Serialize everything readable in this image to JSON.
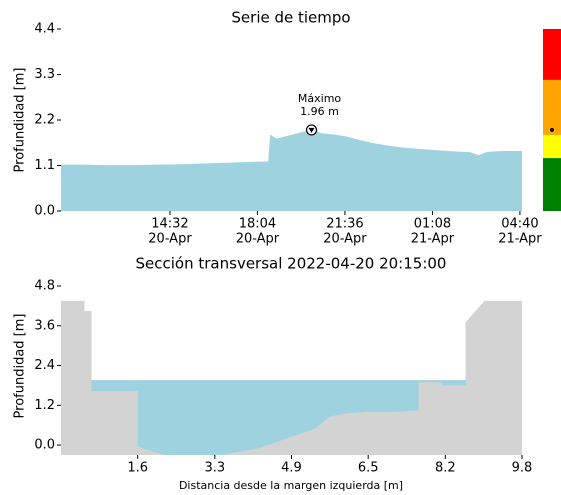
{
  "chart_data": [
    {
      "type": "area",
      "title": "Serie de tiempo",
      "ylabel": "Profundidad [m]",
      "color": "#9fd2df",
      "x": [
        "20-Apr 10:08",
        "20-Apr 11:00",
        "20-Apr 12:00",
        "20-Apr 13:00",
        "20-Apr 14:00",
        "20-Apr 15:00",
        "20-Apr 16:00",
        "20-Apr 17:00",
        "20-Apr 18:00",
        "20-Apr 18:30",
        "20-Apr 18:35",
        "20-Apr 18:50",
        "20-Apr 19:10",
        "20-Apr 19:30",
        "20-Apr 19:50",
        "20-Apr 20:15",
        "20-Apr 20:40",
        "20-Apr 21:10",
        "20-Apr 21:40",
        "20-Apr 22:10",
        "20-Apr 22:40",
        "20-Apr 23:20",
        "21-Apr 00:00",
        "21-Apr 00:40",
        "21-Apr 01:20",
        "21-Apr 02:00",
        "21-Apr 02:40",
        "21-Apr 03:00",
        "21-Apr 03:20",
        "21-Apr 04:00",
        "21-Apr 04:45"
      ],
      "values": [
        1.12,
        1.12,
        1.11,
        1.11,
        1.12,
        1.13,
        1.15,
        1.17,
        1.19,
        1.2,
        1.85,
        1.75,
        1.8,
        1.85,
        1.9,
        1.96,
        1.88,
        1.85,
        1.8,
        1.72,
        1.65,
        1.58,
        1.53,
        1.5,
        1.47,
        1.44,
        1.42,
        1.35,
        1.43,
        1.45,
        1.45
      ],
      "xlim": [
        "20-Apr 10:08",
        "21-Apr 04:45"
      ],
      "ylim": [
        0,
        4.4
      ],
      "xticks": [
        {
          "value": "20-Apr 14:32",
          "label": [
            "14:32",
            "20-Apr"
          ]
        },
        {
          "value": "20-Apr 18:04",
          "label": [
            "18:04",
            "20-Apr"
          ]
        },
        {
          "value": "20-Apr 21:36",
          "label": [
            "21:36",
            "20-Apr"
          ]
        },
        {
          "value": "21-Apr 01:08",
          "label": [
            "01:08",
            "21-Apr"
          ]
        },
        {
          "value": "21-Apr 04:40",
          "label": [
            "04:40",
            "21-Apr"
          ]
        }
      ],
      "yticks": [
        {
          "value": 0,
          "label": "0.0"
        },
        1.1,
        2.2,
        3.3,
        4.4
      ],
      "annotation": {
        "text": "Máximo",
        "x": "20-Apr 20:15",
        "value": 1.96,
        "value_label": "1.96 m"
      },
      "levels": [
        {
          "from": 0,
          "to": 1.28,
          "color": "#008000"
        },
        {
          "from": 1.28,
          "to": 1.84,
          "color": "#ffff00"
        },
        {
          "from": 1.84,
          "to": 3.17,
          "color": "#ffa500"
        },
        {
          "from": 3.17,
          "to": 4.4,
          "color": "#ff0000"
        }
      ]
    },
    {
      "type": "cross_section",
      "title": "Sección transversal 2022-04-20 20:15:00",
      "ylabel": "Profundidad [m]",
      "xlabel": "Distancia desde la margen izquierda [m]",
      "terrain_color": "#d3d3d3",
      "water_color": "#9fd2df",
      "water_level": 1.96,
      "x": [
        0,
        0.5,
        0.5,
        0.65,
        0.65,
        1.63,
        1.63,
        2.2,
        3.4,
        4.2,
        5.0,
        5.4,
        5.7,
        6.0,
        6.5,
        7.1,
        7.6,
        7.6,
        8.1,
        8.1,
        8.6,
        8.6,
        9.0,
        9.8
      ],
      "y": [
        4.35,
        4.35,
        4.05,
        4.05,
        1.63,
        1.63,
        -0.05,
        -0.3,
        -0.3,
        -0.1,
        0.3,
        0.5,
        0.85,
        0.95,
        1.0,
        1.0,
        1.05,
        1.9,
        1.9,
        1.8,
        1.8,
        3.7,
        4.35,
        4.35
      ],
      "xlim": [
        0,
        9.8
      ],
      "ylim": [
        -0.3,
        4.8
      ],
      "xticks": [
        {
          "value": 1.63,
          "label": "1.6"
        },
        {
          "value": 3.27,
          "label": "3.3"
        },
        {
          "value": 4.9,
          "label": "4.9"
        },
        {
          "value": 6.53,
          "label": "6.5"
        },
        {
          "value": 8.17,
          "label": "8.2"
        },
        {
          "value": 9.8,
          "label": "9.8"
        }
      ],
      "yticks": [
        {
          "value": 0,
          "label": "0.0"
        },
        1.2,
        2.4,
        3.6,
        4.8
      ]
    }
  ]
}
